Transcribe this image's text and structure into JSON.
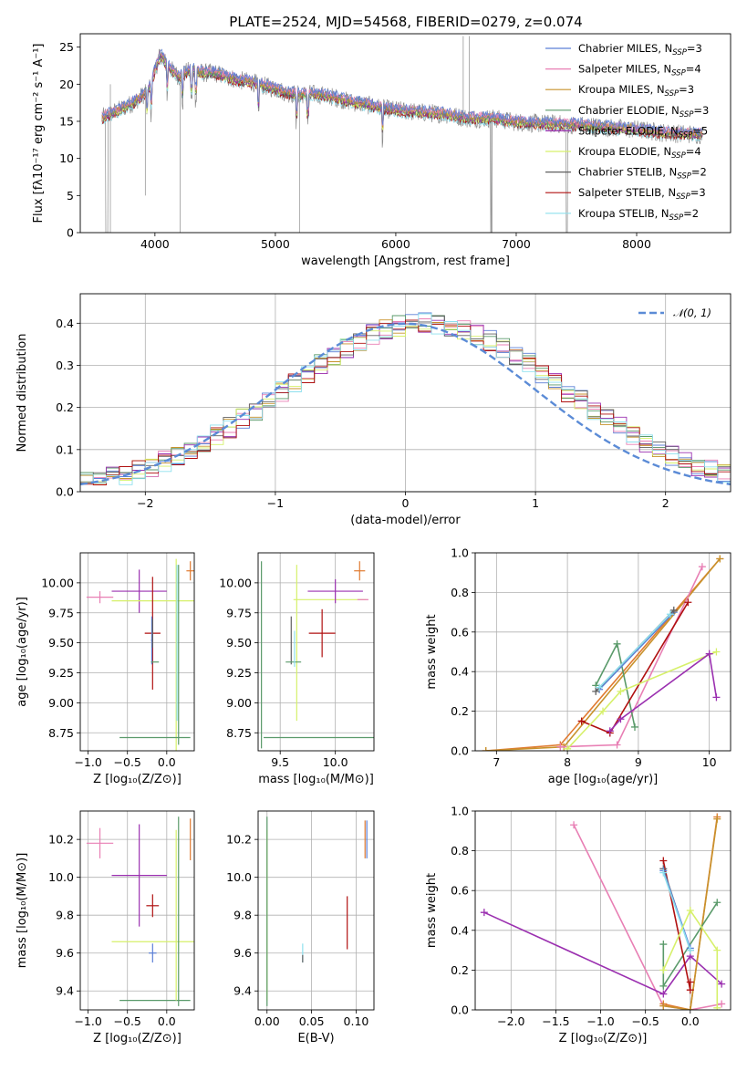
{
  "title": "PLATE=2524, MJD=54568, FIBERID=0279, z=0.074",
  "colors": {
    "chabrier_miles": "#5b7fd6",
    "salpeter_miles": "#e87fb4",
    "kroupa_miles": "#c8922c",
    "chabrier_elodie": "#5a9a6a",
    "salpeter_elodie": "#9b30b0",
    "kroupa_elodie": "#d6f06a",
    "chabrier_stelib": "#606060",
    "salpeter_stelib": "#b01010",
    "kroupa_stelib": "#8ee0ee",
    "normal": "#5b8bd6",
    "orange": "#e07a30"
  },
  "chart_data": [
    {
      "type": "line",
      "id": "spectrum",
      "xlabel": "wavelength [Angstrom, rest frame]",
      "ylabel": "Flux [fλ10⁻¹⁷ erg cm⁻² s⁻¹ A⁻¹]",
      "xlim": [
        3380,
        8780
      ],
      "ylim": [
        0,
        26.8
      ],
      "xticks": [
        4000,
        5000,
        6000,
        7000,
        8000
      ],
      "yticks": [
        0,
        5,
        10,
        15,
        20,
        25
      ],
      "continuum": [
        [
          3560,
          15.5
        ],
        [
          3700,
          16.5
        ],
        [
          3820,
          17.5
        ],
        [
          3900,
          18.5
        ],
        [
          3970,
          20
        ],
        [
          4000,
          22
        ],
        [
          4050,
          24
        ],
        [
          4100,
          22.5
        ],
        [
          4200,
          21
        ],
        [
          4300,
          22
        ],
        [
          4400,
          21.5
        ],
        [
          4500,
          21.5
        ],
        [
          4600,
          21
        ],
        [
          4700,
          20.5
        ],
        [
          4800,
          20.3
        ],
        [
          4900,
          19.8
        ],
        [
          5000,
          19.4
        ],
        [
          5100,
          18.8
        ],
        [
          5200,
          18.6
        ],
        [
          5300,
          18.7
        ],
        [
          5400,
          18.5
        ],
        [
          5500,
          18.2
        ],
        [
          5600,
          17.7
        ],
        [
          5700,
          17.4
        ],
        [
          5800,
          17.1
        ],
        [
          5900,
          16.7
        ],
        [
          6000,
          16.5
        ],
        [
          6200,
          16.2
        ],
        [
          6400,
          16
        ],
        [
          6600,
          15.4
        ],
        [
          6800,
          15.4
        ],
        [
          7000,
          14.9
        ],
        [
          7200,
          14.7
        ],
        [
          7400,
          14.6
        ],
        [
          7600,
          14.4
        ],
        [
          7800,
          14.1
        ],
        [
          8000,
          13.9
        ],
        [
          8200,
          13.5
        ],
        [
          8400,
          13.3
        ],
        [
          8550,
          13.2
        ]
      ],
      "series": [
        {
          "name": "Chabrier MILES, N",
          "sub": "SSP",
          "suffix": "=3",
          "color": "#5b7fd6"
        },
        {
          "name": "Salpeter MILES, N",
          "sub": "SSP",
          "suffix": "=4",
          "color": "#e87fb4"
        },
        {
          "name": "Kroupa MILES, N",
          "sub": "SSP",
          "suffix": "=3",
          "color": "#c8922c"
        },
        {
          "name": "Chabrier ELODIE, N",
          "sub": "SSP",
          "suffix": "=3",
          "color": "#5a9a6a"
        },
        {
          "name": "Salpeter ELODIE, N",
          "sub": "SSP",
          "suffix": "=5",
          "color": "#9b30b0"
        },
        {
          "name": "Kroupa ELODIE, N",
          "sub": "SSP",
          "suffix": "=4",
          "color": "#d6f06a"
        },
        {
          "name": "Chabrier STELIB, N",
          "sub": "SSP",
          "suffix": "=2",
          "color": "#606060"
        },
        {
          "name": "Salpeter STELIB, N",
          "sub": "SSP",
          "suffix": "=3",
          "color": "#b01010"
        },
        {
          "name": "Kroupa STELIB, N",
          "sub": "SSP",
          "suffix": "=2",
          "color": "#8ee0ee"
        }
      ],
      "legend": "top-right",
      "grid": false
    },
    {
      "type": "bar",
      "id": "residual-histogram",
      "xlabel": "(data-model)/error",
      "ylabel": "Normed distribution",
      "xlim": [
        -2.5,
        2.5
      ],
      "ylim": [
        0,
        0.47
      ],
      "xticks": [
        -2,
        -1,
        0,
        1,
        2
      ],
      "yticks": [
        0.0,
        0.1,
        0.2,
        0.3,
        0.4
      ],
      "bin_width": 0.1,
      "bins_start": -2.5,
      "reference_series": {
        "name": "𝒩(0, 1)",
        "mean": 0,
        "sigma": 1
      },
      "legend": "top-right",
      "grid": true
    },
    {
      "type": "scatter",
      "id": "age-vs-Z",
      "xlabel": "Z [log₁₀(Z/Z⊙)]",
      "ylabel": "age  [log₁₀(age/yr)]",
      "xlim": [
        -1.1,
        0.35
      ],
      "ylim": [
        8.6,
        10.25
      ],
      "xticks": [
        -1.0,
        -0.5,
        0.0
      ],
      "yticks": [
        8.75,
        9.0,
        9.25,
        9.5,
        9.75,
        10.0
      ],
      "errorbars": [
        {
          "x": -0.85,
          "y": 9.88,
          "xerr": 0.17,
          "yerr": 0.05,
          "color": "#e87fb4"
        },
        {
          "x": -0.35,
          "y": 9.93,
          "xerr": 0.35,
          "yerr": 0.18,
          "color": "#9b30b0"
        },
        {
          "x": -0.15,
          "y": 9.85,
          "xerr": 0.55,
          "yerr": 0.0,
          "color": "#d6f06a"
        },
        {
          "x": -0.18,
          "y": 9.58,
          "xerr": 0.1,
          "yerr": 0.47,
          "color": "#b01010"
        },
        {
          "x": -0.19,
          "y": 9.52,
          "xerr": 0.01,
          "yerr": 0.2,
          "color": "#5b7fd6"
        },
        {
          "x": -0.15,
          "y": 9.34,
          "xerr": 0.05,
          "yerr": 0.0,
          "color": "#5a9a6a"
        },
        {
          "x": -0.18,
          "y": 9.58,
          "xerr": 0.0,
          "yerr": 0.12,
          "color": "#606060"
        },
        {
          "x": 0.12,
          "y": 9.4,
          "xerr": 0.0,
          "yerr": 0.8,
          "color": "#d6f06a"
        },
        {
          "x": 0.13,
          "y": 9.5,
          "xerr": 0.0,
          "yerr": 0.65,
          "color": "#8ee0ee"
        },
        {
          "x": -0.15,
          "y": 8.71,
          "xerr": 0.45,
          "yerr": 0.0,
          "color": "#5a9a6a"
        },
        {
          "x": 0.15,
          "y": 9.4,
          "xerr": 0.0,
          "yerr": 0.75,
          "color": "#5a9a6a"
        },
        {
          "x": 0.3,
          "y": 10.1,
          "xerr": 0.05,
          "yerr": 0.08,
          "color": "#e07a30"
        }
      ],
      "grid": true
    },
    {
      "type": "scatter",
      "id": "age-vs-mass",
      "xlabel": "mass [log₁₀(M/M⊙)]",
      "ylabel": "",
      "xlim": [
        9.3,
        10.35
      ],
      "ylim": [
        8.6,
        10.25
      ],
      "xticks": [
        9.5,
        10.0
      ],
      "yticks": [
        8.75,
        9.0,
        9.25,
        9.5,
        9.75,
        10.0
      ],
      "errorbars": [
        {
          "x": 9.33,
          "y": 9.4,
          "xerr": 0.0,
          "yerr": 0.78,
          "color": "#5a9a6a"
        },
        {
          "x": 9.85,
          "y": 8.71,
          "xerr": 0.5,
          "yerr": 0.0,
          "color": "#5a9a6a"
        },
        {
          "x": 9.65,
          "y": 9.5,
          "xerr": 0.0,
          "yerr": 0.65,
          "color": "#d6f06a"
        },
        {
          "x": 9.95,
          "y": 9.86,
          "xerr": 0.33,
          "yerr": 0.0,
          "color": "#d6f06a"
        },
        {
          "x": 9.88,
          "y": 9.58,
          "xerr": 0.12,
          "yerr": 0.2,
          "color": "#b01010"
        },
        {
          "x": 10.0,
          "y": 9.93,
          "xerr": 0.25,
          "yerr": 0.1,
          "color": "#9b30b0"
        },
        {
          "x": 9.6,
          "y": 9.52,
          "xerr": 0.0,
          "yerr": 0.2,
          "color": "#606060"
        },
        {
          "x": 9.62,
          "y": 9.34,
          "xerr": 0.07,
          "yerr": 0.0,
          "color": "#5a9a6a"
        },
        {
          "x": 9.63,
          "y": 9.45,
          "xerr": 0.0,
          "yerr": 0.15,
          "color": "#8ee0ee"
        },
        {
          "x": 10.22,
          "y": 10.1,
          "xerr": 0.05,
          "yerr": 0.08,
          "color": "#e07a30"
        },
        {
          "x": 10.25,
          "y": 9.86,
          "xerr": 0.05,
          "yerr": 0.0,
          "color": "#e87fb4"
        }
      ],
      "grid": true
    },
    {
      "type": "line",
      "id": "weight-vs-age",
      "xlabel": "age  [log₁₀(age/yr)]",
      "ylabel": "mass weight",
      "xlim": [
        6.7,
        10.3
      ],
      "ylim": [
        0,
        1.0
      ],
      "xticks": [
        7,
        8,
        9,
        10
      ],
      "yticks": [
        0.0,
        0.2,
        0.4,
        0.6,
        0.8,
        1.0
      ],
      "series": [
        {
          "color": "#e07a30",
          "x": [
            6.85,
            7.9,
            10.15
          ],
          "y": [
            0.0,
            0.03,
            0.97
          ]
        },
        {
          "color": "#c8922c",
          "x": [
            6.85,
            7.95,
            10.15
          ],
          "y": [
            0.0,
            0.02,
            0.97
          ]
        },
        {
          "color": "#e87fb4",
          "x": [
            7.9,
            8.7,
            9.9
          ],
          "y": [
            0.02,
            0.03,
            0.93
          ]
        },
        {
          "color": "#5a9a6a",
          "x": [
            8.4,
            8.7,
            8.95
          ],
          "y": [
            0.33,
            0.54,
            0.12
          ]
        },
        {
          "color": "#5b7fd6",
          "x": [
            8.45,
            9.5
          ],
          "y": [
            0.31,
            0.7
          ]
        },
        {
          "color": "#606060",
          "x": [
            8.4,
            9.5
          ],
          "y": [
            0.3,
            0.71
          ]
        },
        {
          "color": "#8ee0ee",
          "x": [
            8.45,
            9.45
          ],
          "y": [
            0.32,
            0.69
          ]
        },
        {
          "color": "#b01010",
          "x": [
            8.2,
            8.6,
            9.7
          ],
          "y": [
            0.15,
            0.09,
            0.75
          ]
        },
        {
          "color": "#d6f06a",
          "x": [
            8.0,
            8.5,
            8.75,
            10.1
          ],
          "y": [
            0.01,
            0.2,
            0.3,
            0.5
          ]
        },
        {
          "color": "#9b30b0",
          "x": [
            8.6,
            8.75,
            10.0,
            10.1
          ],
          "y": [
            0.1,
            0.16,
            0.49,
            0.27
          ]
        }
      ],
      "grid": true
    },
    {
      "type": "scatter",
      "id": "mass-vs-Z",
      "xlabel": "Z [log₁₀(Z/Z⊙)]",
      "ylabel": "mass [log₁₀(M/M⊙)]",
      "xlim": [
        -1.1,
        0.35
      ],
      "ylim": [
        9.3,
        10.35
      ],
      "xticks": [
        -1.0,
        -0.5,
        0.0
      ],
      "yticks": [
        9.4,
        9.6,
        9.8,
        10.0,
        10.2
      ],
      "errorbars": [
        {
          "x": -0.85,
          "y": 10.18,
          "xerr": 0.17,
          "yerr": 0.08,
          "color": "#e87fb4"
        },
        {
          "x": -0.35,
          "y": 10.01,
          "xerr": 0.35,
          "yerr": 0.27,
          "color": "#9b30b0"
        },
        {
          "x": -0.15,
          "y": 9.66,
          "xerr": 0.55,
          "yerr": 0.0,
          "color": "#d6f06a"
        },
        {
          "x": -0.18,
          "y": 9.85,
          "xerr": 0.08,
          "yerr": 0.06,
          "color": "#b01010"
        },
        {
          "x": -0.15,
          "y": 9.35,
          "xerr": 0.45,
          "yerr": 0.0,
          "color": "#5a9a6a"
        },
        {
          "x": -0.18,
          "y": 9.6,
          "xerr": 0.05,
          "yerr": 0.05,
          "color": "#5b7fd6"
        },
        {
          "x": 0.12,
          "y": 9.8,
          "xerr": 0.0,
          "yerr": 0.45,
          "color": "#d6f06a"
        },
        {
          "x": 0.15,
          "y": 9.82,
          "xerr": 0.0,
          "yerr": 0.5,
          "color": "#5a9a6a"
        },
        {
          "x": 0.3,
          "y": 10.2,
          "xerr": 0.0,
          "yerr": 0.11,
          "color": "#e07a30"
        }
      ],
      "grid": true
    },
    {
      "type": "scatter",
      "id": "mass-vs-EBV",
      "xlabel": "E(B-V)",
      "ylabel": "",
      "xlim": [
        -0.01,
        0.12
      ],
      "ylim": [
        9.3,
        10.35
      ],
      "xticks": [
        0.0,
        0.05,
        0.1
      ],
      "yticks": [
        9.4,
        9.6,
        9.8,
        10.0,
        10.2
      ],
      "errorbars": [
        {
          "x": 0.0,
          "y": 9.8,
          "xerr": 0.0,
          "yerr": 0.45,
          "color": "#d6f06a"
        },
        {
          "x": 0.0,
          "y": 9.82,
          "xerr": 0.0,
          "yerr": 0.5,
          "color": "#5a9a6a"
        },
        {
          "x": 0.04,
          "y": 9.6,
          "xerr": 0.0,
          "yerr": 0.05,
          "color": "#8ee0ee"
        },
        {
          "x": 0.04,
          "y": 9.57,
          "xerr": 0.0,
          "yerr": 0.02,
          "color": "#606060"
        },
        {
          "x": 0.09,
          "y": 9.76,
          "xerr": 0.0,
          "yerr": 0.14,
          "color": "#b01010"
        },
        {
          "x": 0.11,
          "y": 10.2,
          "xerr": 0.0,
          "yerr": 0.1,
          "color": "#e07a30"
        },
        {
          "x": 0.112,
          "y": 10.2,
          "xerr": 0.0,
          "yerr": 0.1,
          "color": "#5b7fd6"
        }
      ],
      "grid": true
    },
    {
      "type": "line",
      "id": "weight-vs-Z",
      "xlabel": "Z [log₁₀(Z/Z⊙)]",
      "ylabel": "mass weight",
      "xlim": [
        -2.4,
        0.45
      ],
      "ylim": [
        0,
        1.0
      ],
      "xticks": [
        -2.0,
        -1.5,
        -1.0,
        -0.5,
        0.0
      ],
      "yticks": [
        0.0,
        0.2,
        0.4,
        0.6,
        0.8,
        1.0
      ],
      "series": [
        {
          "color": "#e87fb4",
          "x": [
            -1.3,
            -0.3,
            0.0,
            0.35
          ],
          "y": [
            0.93,
            0.02,
            0.0,
            0.03
          ]
        },
        {
          "color": "#9b30b0",
          "x": [
            -2.3,
            -0.3,
            0.0,
            0.35
          ],
          "y": [
            0.49,
            0.08,
            0.27,
            0.13
          ]
        },
        {
          "color": "#e07a30",
          "x": [
            -0.3,
            0.0,
            0.3
          ],
          "y": [
            0.03,
            0.0,
            0.97
          ]
        },
        {
          "color": "#c8922c",
          "x": [
            -0.3,
            0.0,
            0.3
          ],
          "y": [
            0.02,
            0.0,
            0.96
          ]
        },
        {
          "color": "#5a9a6a",
          "x": [
            -0.3,
            -0.3,
            0.3
          ],
          "y": [
            0.33,
            0.12,
            0.54
          ]
        },
        {
          "color": "#b01010",
          "x": [
            -0.3,
            0.0,
            0.0
          ],
          "y": [
            0.75,
            0.1,
            0.14
          ]
        },
        {
          "color": "#606060",
          "x": [
            -0.3,
            0.0
          ],
          "y": [
            0.71,
            0.3
          ]
        },
        {
          "color": "#5b7fd6",
          "x": [
            -0.3,
            0.0
          ],
          "y": [
            0.7,
            0.31
          ]
        },
        {
          "color": "#8ee0ee",
          "x": [
            -0.3,
            0.0
          ],
          "y": [
            0.69,
            0.3
          ]
        },
        {
          "color": "#d6f06a",
          "x": [
            -0.3,
            0.0,
            0.3,
            0.3
          ],
          "y": [
            0.2,
            0.5,
            0.3,
            0.01
          ]
        }
      ],
      "grid": true
    }
  ]
}
